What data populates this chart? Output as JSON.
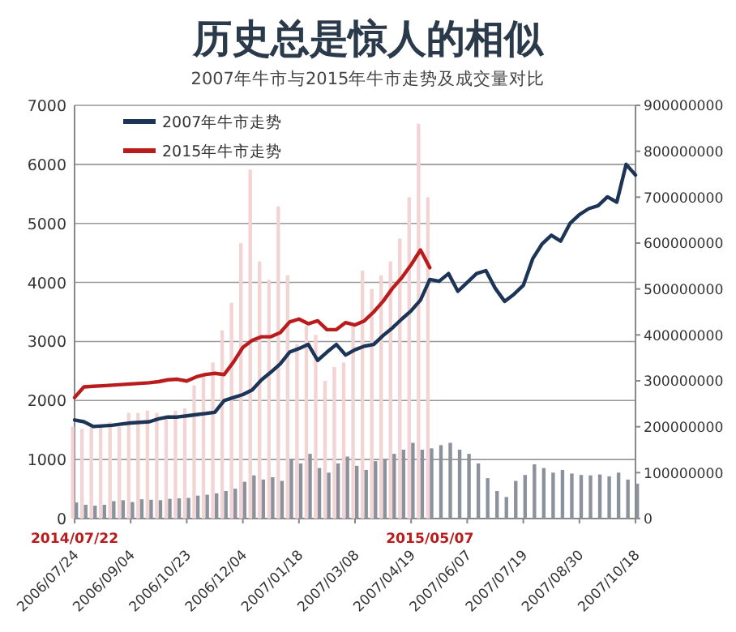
{
  "chart_data": {
    "type": "line",
    "title": "历史总是惊人的相似",
    "subtitle": "2007年牛市与2015年牛市走势及成交量对比",
    "categories": [
      "2006/07/24",
      null,
      null,
      null,
      null,
      null,
      "2006/09/04",
      null,
      null,
      null,
      null,
      null,
      "2006/10/23",
      null,
      null,
      null,
      null,
      null,
      "2006/12/04",
      null,
      null,
      null,
      null,
      null,
      "2007/01/18",
      null,
      null,
      null,
      null,
      null,
      "2007/03/08",
      null,
      null,
      null,
      null,
      null,
      "2007/04/19",
      null,
      null,
      null,
      null,
      null,
      "2007/06/07",
      null,
      null,
      null,
      null,
      null,
      "2007/07/19",
      null,
      null,
      null,
      null,
      null,
      "2007/08/30",
      null,
      null,
      null,
      null,
      null,
      "2007/10/18"
    ],
    "annotations": [
      "2014/07/22",
      "2015/05/07"
    ],
    "ylim": [
      0,
      7000
    ],
    "yticks": [
      0,
      1000,
      2000,
      3000,
      4000,
      5000,
      6000,
      7000
    ],
    "y2lim": [
      0,
      900000000
    ],
    "y2ticks": [
      0,
      100000000,
      200000000,
      300000000,
      400000000,
      500000000,
      600000000,
      700000000,
      800000000,
      900000000
    ],
    "grid": "y",
    "legend": "top left",
    "series": [
      {
        "type": "bar",
        "axis": "y2",
        "color": "#f2d4d4",
        "values": [
          200000000,
          195000000,
          205000000,
          200000000,
          210000000,
          200000000,
          230000000,
          230000000,
          235000000,
          230000000,
          225000000,
          235000000,
          240000000,
          290000000,
          310000000,
          340000000,
          410000000,
          470000000,
          600000000,
          760000000,
          560000000,
          520000000,
          680000000,
          530000000,
          380000000,
          420000000,
          400000000,
          300000000,
          330000000,
          340000000,
          420000000,
          540000000,
          500000000,
          530000000,
          560000000,
          610000000,
          700000000,
          860000000,
          700000000,
          null,
          null,
          null,
          null,
          null,
          null,
          null,
          null,
          null,
          null,
          null,
          null,
          null,
          null,
          null,
          null,
          null,
          null,
          null,
          null,
          null,
          null
        ]
      },
      {
        "type": "bar",
        "axis": "y2",
        "color": "#8c929c",
        "values": [
          35000000,
          30000000,
          28000000,
          30000000,
          38000000,
          40000000,
          36000000,
          42000000,
          41000000,
          40000000,
          43000000,
          44000000,
          45000000,
          50000000,
          52000000,
          55000000,
          60000000,
          65000000,
          80000000,
          94000000,
          85000000,
          90000000,
          82000000,
          130000000,
          120000000,
          141000000,
          110000000,
          100000000,
          120000000,
          135000000,
          115000000,
          106000000,
          125000000,
          130000000,
          141000000,
          150000000,
          165000000,
          150000000,
          153000000,
          160000000,
          165000000,
          150000000,
          141000000,
          120000000,
          88000000,
          60000000,
          47000000,
          82000000,
          95000000,
          118000000,
          110000000,
          100000000,
          106000000,
          98000000,
          95000000,
          94000000,
          96000000,
          92000000,
          100000000,
          85000000,
          76000000
        ]
      },
      {
        "name": "2007年牛市走势",
        "color": "#1c3557",
        "values": [
          1670,
          1640,
          1560,
          1570,
          1580,
          1600,
          1620,
          1630,
          1640,
          1690,
          1720,
          1720,
          1740,
          1760,
          1780,
          1800,
          2000,
          2050,
          2100,
          2180,
          2350,
          2480,
          2620,
          2820,
          2880,
          2950,
          2680,
          2820,
          2950,
          2770,
          2860,
          2920,
          2950,
          3100,
          3230,
          3380,
          3520,
          3700,
          4050,
          4020,
          4150,
          3850,
          4000,
          4150,
          4200,
          3900,
          3680,
          3800,
          3950,
          4400,
          4650,
          4800,
          4700,
          5000,
          5150,
          5250,
          5300,
          5450,
          5360,
          6000,
          5820
        ]
      },
      {
        "name": "2015年牛市走势",
        "color": "#b81c1c",
        "values": [
          2050,
          2230,
          2240,
          2250,
          2260,
          2270,
          2280,
          2290,
          2300,
          2320,
          2350,
          2360,
          2330,
          2400,
          2440,
          2460,
          2440,
          2650,
          2900,
          3020,
          3080,
          3080,
          3150,
          3330,
          3380,
          3300,
          3350,
          3200,
          3200,
          3320,
          3280,
          3350,
          3500,
          3680,
          3900,
          4080,
          4300,
          4550,
          4250,
          null,
          null,
          null,
          null,
          null,
          null,
          null,
          null,
          null,
          null,
          null,
          null,
          null,
          null,
          null,
          null,
          null,
          null,
          null,
          null,
          null,
          null
        ]
      }
    ]
  }
}
